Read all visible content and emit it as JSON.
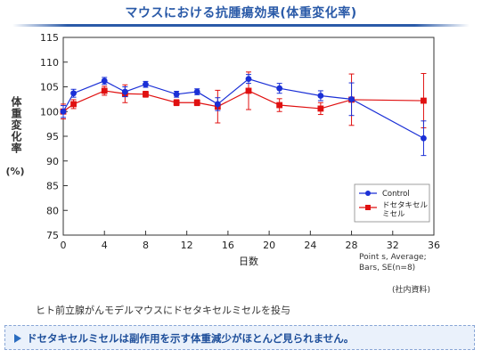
{
  "header": {
    "title": "マウスにおける抗腫瘍効果(体重変化率)"
  },
  "axis": {
    "ylabel": "体重変化率",
    "yunit": "(%)"
  },
  "footnote": {
    "line1": "Point s, Average;",
    "line2": "Bars, SE(n=8)",
    "source": "(社内資料)"
  },
  "description": "ヒト前立腺がんモデルマウスにドセタキセルミセルを投与",
  "callout": "ドセタキセルミセルは副作用を示す体重減少がほとんど見られません。",
  "colors": {
    "title": "#2a5aa8",
    "control": "#1a2fd6",
    "micelle": "#e01010",
    "callout_bg": "#eaf1fb"
  },
  "chart_data": {
    "type": "line",
    "xlabel": "日数",
    "ylabel": "体重変化率 (%)",
    "xlim": [
      0,
      36
    ],
    "ylim": [
      75,
      115
    ],
    "xticks": [
      0,
      4,
      8,
      12,
      16,
      20,
      24,
      28,
      32,
      36
    ],
    "yticks": [
      75,
      80,
      85,
      90,
      95,
      100,
      105,
      110,
      115
    ],
    "grid": false,
    "legend_position": "inside-right",
    "series": [
      {
        "name": "Control",
        "marker": "circle",
        "color": "#1a2fd6",
        "x": [
          0,
          1,
          4,
          6,
          8,
          11,
          13,
          15,
          18,
          21,
          25,
          28,
          35
        ],
        "y": [
          100,
          103.7,
          106.2,
          104.0,
          105.5,
          103.5,
          104.0,
          101.5,
          106.6,
          104.7,
          103.2,
          102.5,
          94.6
        ],
        "err": [
          1.2,
          0.8,
          0.7,
          1.0,
          0.6,
          0.6,
          0.6,
          1.3,
          0.9,
          1.0,
          1.0,
          3.3,
          3.5
        ]
      },
      {
        "name": "ドセタキセルミセル",
        "marker": "square",
        "color": "#e01010",
        "x": [
          0,
          1,
          4,
          6,
          8,
          11,
          13,
          15,
          18,
          21,
          25,
          28,
          35
        ],
        "y": [
          100,
          101.5,
          104.2,
          103.6,
          103.5,
          101.8,
          101.8,
          101.0,
          104.2,
          101.3,
          100.6,
          102.4,
          102.2
        ],
        "err": [
          1.5,
          0.9,
          0.9,
          1.8,
          0.6,
          0.6,
          0.6,
          3.3,
          3.8,
          1.3,
          1.2,
          5.2,
          5.5
        ]
      }
    ]
  }
}
